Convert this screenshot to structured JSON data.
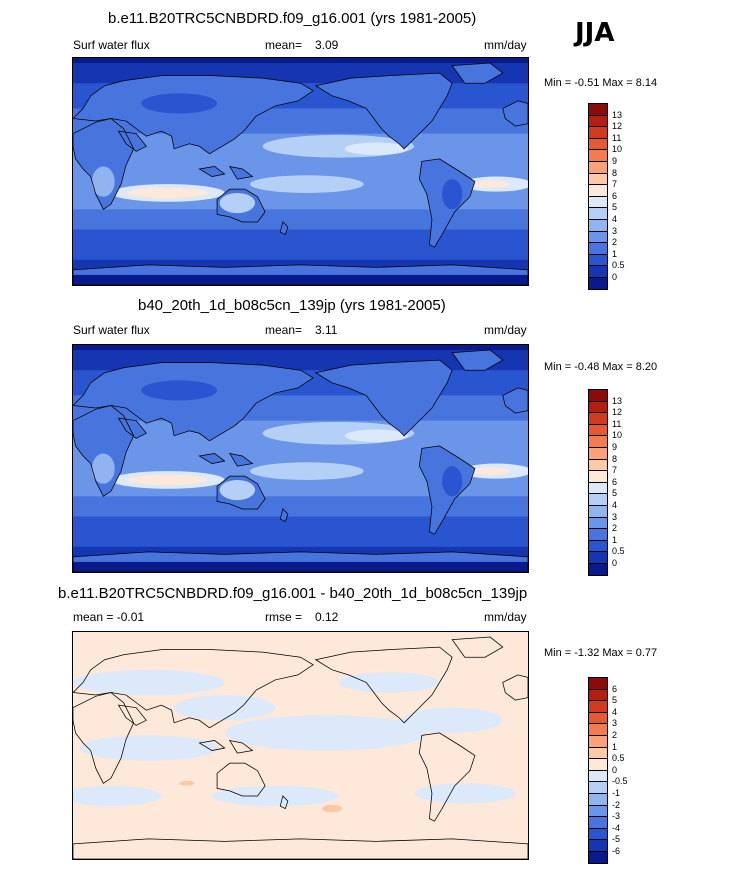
{
  "season": "JJA",
  "panels": [
    {
      "title": "b.e11.B20TRC5CNBDRD.f09_g16.001 (yrs 1981-2005)",
      "left_label": "Surf water flux",
      "mid_label": "mean=",
      "mid_value": "3.09",
      "units": "mm/day",
      "minmax": "Min = -0.51 Max = 8.14",
      "colorbar_labels": [
        "13",
        "12",
        "11",
        "10",
        "9",
        "8",
        "7",
        "6",
        "5",
        "4",
        "3",
        "2",
        "1",
        "0.5",
        "0"
      ],
      "colors": [
        "#8b0a0a",
        "#b41e10",
        "#cf3b1c",
        "#e55a2e",
        "#f27c4e",
        "#f9a27a",
        "#fcc9a8",
        "#fde8d9",
        "#dbe9fb",
        "#b5d0f7",
        "#8fb4f0",
        "#6a95e8",
        "#4875dd",
        "#2a55d0",
        "#1536b0",
        "#0a1a8a"
      ],
      "style": "abs"
    },
    {
      "title": "b40_20th_1d_b08c5cn_139jp (yrs 1981-2005)",
      "left_label": "Surf water flux",
      "mid_label": "mean=",
      "mid_value": "3.11",
      "units": "mm/day",
      "minmax": "Min = -0.48 Max = 8.20",
      "colorbar_labels": [
        "13",
        "12",
        "11",
        "10",
        "9",
        "8",
        "7",
        "6",
        "5",
        "4",
        "3",
        "2",
        "1",
        "0.5",
        "0"
      ],
      "colors": [
        "#8b0a0a",
        "#b41e10",
        "#cf3b1c",
        "#e55a2e",
        "#f27c4e",
        "#f9a27a",
        "#fcc9a8",
        "#fde8d9",
        "#dbe9fb",
        "#b5d0f7",
        "#8fb4f0",
        "#6a95e8",
        "#4875dd",
        "#2a55d0",
        "#1536b0",
        "#0a1a8a"
      ],
      "style": "abs"
    },
    {
      "title": "b.e11.B20TRC5CNBDRD.f09_g16.001 - b40_20th_1d_b08c5cn_139jp",
      "left_label": "mean =  -0.01",
      "mid_label": "rmse =",
      "mid_value": "0.12",
      "units": "mm/day",
      "minmax": "Min = -1.32 Max = 0.77",
      "colorbar_labels": [
        "6",
        "5",
        "4",
        "3",
        "2",
        "1",
        "0.5",
        "0",
        "-0.5",
        "-1",
        "-2",
        "-3",
        "-4",
        "-5",
        "-6"
      ],
      "colors": [
        "#8b0a0a",
        "#b41e10",
        "#cf3b1c",
        "#e55a2e",
        "#f27c4e",
        "#f9a27a",
        "#fcc9a8",
        "#fde8d9",
        "#dbe9fb",
        "#b5d0f7",
        "#8fb4f0",
        "#6a95e8",
        "#4875dd",
        "#2a55d0",
        "#1536b0",
        "#0a1a8a"
      ],
      "style": "diff"
    }
  ]
}
